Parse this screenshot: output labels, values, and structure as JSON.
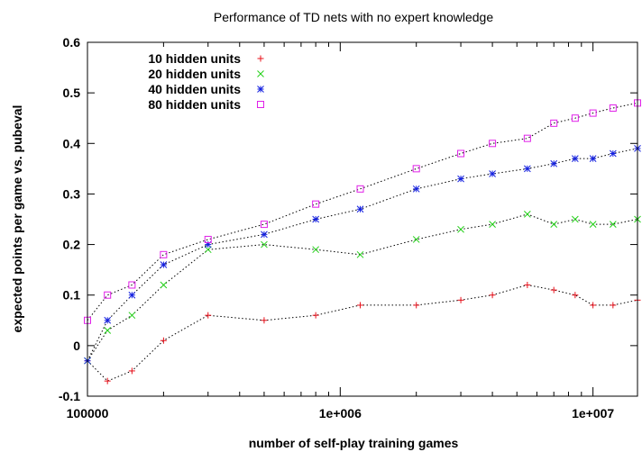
{
  "chart_data": {
    "type": "scatter",
    "title": "Performance of TD nets with no expert knowledge",
    "xlabel": "number of self-play training games",
    "ylabel": "expected points per game vs. pubeval",
    "xscale": "log",
    "xlim": [
      100000,
      15000000
    ],
    "ylim": [
      -0.1,
      0.6
    ],
    "xticks": [
      {
        "value": 100000,
        "label": "100000"
      },
      {
        "value": 1000000,
        "label": "1e+006"
      },
      {
        "value": 10000000,
        "label": "1e+007"
      }
    ],
    "yticks": [
      {
        "value": -0.1,
        "label": "-0.1"
      },
      {
        "value": 0,
        "label": "0"
      },
      {
        "value": 0.1,
        "label": "0.1"
      },
      {
        "value": 0.2,
        "label": "0.2"
      },
      {
        "value": 0.3,
        "label": "0.3"
      },
      {
        "value": 0.4,
        "label": "0.4"
      },
      {
        "value": 0.5,
        "label": "0.5"
      },
      {
        "value": 0.6,
        "label": "0.6"
      }
    ],
    "legend_position": "top-left",
    "series": [
      {
        "name": "10 hidden units",
        "marker": "plus",
        "color": "#e8101a",
        "x": [
          100000,
          120000,
          150000,
          200000,
          300000,
          500000,
          800000,
          1200000,
          2000000,
          3000000,
          4000000,
          5500000,
          7000000,
          8500000,
          10000000,
          12000000,
          15000000
        ],
        "y": [
          -0.03,
          -0.07,
          -0.05,
          0.01,
          0.06,
          0.05,
          0.06,
          0.08,
          0.08,
          0.09,
          0.1,
          0.12,
          0.11,
          0.1,
          0.08,
          0.08,
          0.09
        ]
      },
      {
        "name": "20 hidden units",
        "marker": "cross",
        "color": "#22d017",
        "x": [
          100000,
          120000,
          150000,
          200000,
          300000,
          500000,
          800000,
          1200000,
          2000000,
          3000000,
          4000000,
          5500000,
          7000000,
          8500000,
          10000000,
          12000000,
          15000000
        ],
        "y": [
          -0.03,
          0.03,
          0.06,
          0.12,
          0.19,
          0.2,
          0.19,
          0.18,
          0.21,
          0.23,
          0.24,
          0.26,
          0.24,
          0.25,
          0.24,
          0.24,
          0.25
        ]
      },
      {
        "name": "40 hidden units",
        "marker": "star",
        "color": "#1420e0",
        "x": [
          100000,
          120000,
          150000,
          200000,
          300000,
          500000,
          800000,
          1200000,
          2000000,
          3000000,
          4000000,
          5500000,
          7000000,
          8500000,
          10000000,
          12000000,
          15000000
        ],
        "y": [
          -0.03,
          0.05,
          0.1,
          0.16,
          0.2,
          0.22,
          0.25,
          0.27,
          0.31,
          0.33,
          0.34,
          0.35,
          0.36,
          0.37,
          0.37,
          0.38,
          0.39
        ]
      },
      {
        "name": "80 hidden units",
        "marker": "square",
        "color": "#e020e8",
        "x": [
          100000,
          120000,
          150000,
          200000,
          300000,
          500000,
          800000,
          1200000,
          2000000,
          3000000,
          4000000,
          5500000,
          7000000,
          8500000,
          10000000,
          12000000,
          15000000
        ],
        "y": [
          0.05,
          0.1,
          0.12,
          0.18,
          0.21,
          0.24,
          0.28,
          0.31,
          0.35,
          0.38,
          0.4,
          0.41,
          0.44,
          0.45,
          0.46,
          0.47,
          0.48
        ]
      }
    ]
  }
}
